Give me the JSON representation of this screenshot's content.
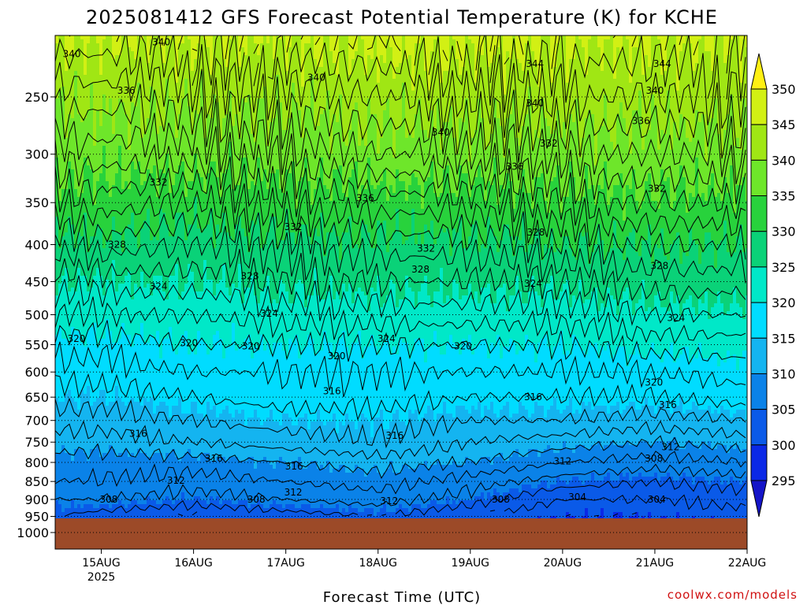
{
  "colors": {
    "bands": [
      "#1414c8",
      "#0a28e6",
      "#0a5ae8",
      "#0a82e8",
      "#14b4f0",
      "#00dcff",
      "#00e8c8",
      "#0ad278",
      "#28d23c",
      "#6ee62a",
      "#a0e614",
      "#d2f014",
      "#fff014"
    ],
    "ground": "#9c4a28",
    "credit": "#d01010"
  },
  "chart_data": {
    "type": "contour",
    "title": "2025081412 GFS Forecast Potential Temperature (K) for KCHE",
    "xlabel": "Forecast Time (UTC)",
    "ylabel": "",
    "credit": "coolwx.com/models",
    "y_scale": "log",
    "ylim": [
      1050,
      200
    ],
    "y_ticks": [
      250,
      300,
      350,
      400,
      450,
      500,
      550,
      600,
      650,
      700,
      750,
      800,
      850,
      900,
      950,
      1000
    ],
    "y_tick_labels": [
      "250",
      "300",
      "350",
      "400",
      "450",
      "500",
      "550",
      "600",
      "650",
      "700",
      "750",
      "800",
      "850",
      "900",
      "950",
      "1000"
    ],
    "x_range": [
      "2025-08-14T12:00Z",
      "2025-08-22T00:00Z"
    ],
    "x_ticks": [
      {
        "time": "2025-08-15T00:00Z",
        "label": "15AUG",
        "sublabel": "2025"
      },
      {
        "time": "2025-08-16T00:00Z",
        "label": "16AUG"
      },
      {
        "time": "2025-08-17T00:00Z",
        "label": "17AUG"
      },
      {
        "time": "2025-08-18T00:00Z",
        "label": "18AUG"
      },
      {
        "time": "2025-08-19T00:00Z",
        "label": "19AUG"
      },
      {
        "time": "2025-08-20T00:00Z",
        "label": "20AUG"
      },
      {
        "time": "2025-08-21T00:00Z",
        "label": "21AUG"
      },
      {
        "time": "2025-08-22T00:00Z",
        "label": "22AUG"
      }
    ],
    "grid": "dotted horizontal at pressure ticks",
    "ground_below_hPa": 953,
    "colorbar": {
      "levels": [
        295,
        300,
        305,
        310,
        315,
        320,
        325,
        330,
        335,
        340,
        345,
        350
      ],
      "labels": [
        "295",
        "300",
        "305",
        "310",
        "315",
        "320",
        "325",
        "330",
        "335",
        "340",
        "345",
        "350"
      ],
      "extend": "both"
    },
    "contour_interval_K": 2,
    "potential_temperature_profile": {
      "description_days": [
        14.5,
        15,
        16,
        17,
        18,
        19,
        20,
        21,
        22
      ],
      "levels_hPa": [
        950,
        900,
        850,
        800,
        750,
        700,
        650,
        600,
        550,
        500,
        450,
        400,
        350,
        300,
        250,
        200
      ],
      "theta_K": [
        [
          304,
          306,
          308,
          309,
          311,
          313,
          315,
          317,
          319,
          322,
          325,
          329,
          333,
          337,
          341,
          346
        ],
        [
          303,
          306,
          308,
          309,
          311,
          313,
          315,
          317,
          319,
          322,
          325,
          329,
          333,
          337,
          341,
          346
        ],
        [
          302,
          305,
          307,
          309,
          312,
          314,
          316,
          318,
          320,
          322,
          325,
          328,
          332,
          337,
          341,
          346
        ],
        [
          303,
          306,
          308,
          310,
          313,
          315,
          317,
          318,
          320,
          323,
          326,
          329,
          333,
          337,
          341,
          346
        ],
        [
          304,
          307,
          309,
          311,
          314,
          315,
          317,
          318,
          320,
          323,
          326,
          329,
          333,
          338,
          342,
          347
        ],
        [
          302,
          305,
          307,
          310,
          312,
          314,
          316,
          318,
          320,
          323,
          326,
          329,
          333,
          338,
          342,
          347
        ],
        [
          300,
          302,
          305,
          308,
          311,
          314,
          316,
          318,
          320,
          323,
          326,
          330,
          334,
          338,
          342,
          346
        ],
        [
          300,
          302,
          304,
          307,
          310,
          313,
          316,
          318,
          321,
          324,
          327,
          330,
          334,
          338,
          342,
          346
        ],
        [
          301,
          303,
          305,
          308,
          311,
          314,
          317,
          319,
          321,
          324,
          327,
          330,
          334,
          338,
          342,
          346
        ]
      ]
    },
    "contour_labels": [
      {
        "t": 14.68,
        "p": 218,
        "v": "340"
      },
      {
        "t": 15.65,
        "p": 210,
        "v": "340"
      },
      {
        "t": 17.33,
        "p": 235,
        "v": "340"
      },
      {
        "t": 15.27,
        "p": 245,
        "v": "336"
      },
      {
        "t": 18.68,
        "p": 280,
        "v": "340"
      },
      {
        "t": 19.7,
        "p": 225,
        "v": "344"
      },
      {
        "t": 21.08,
        "p": 225,
        "v": "344"
      },
      {
        "t": 19.7,
        "p": 255,
        "v": "340"
      },
      {
        "t": 21.0,
        "p": 245,
        "v": "340"
      },
      {
        "t": 20.85,
        "p": 270,
        "v": "336"
      },
      {
        "t": 19.48,
        "p": 312,
        "v": "336"
      },
      {
        "t": 19.85,
        "p": 290,
        "v": "332"
      },
      {
        "t": 15.62,
        "p": 328,
        "v": "332"
      },
      {
        "t": 17.86,
        "p": 345,
        "v": "336"
      },
      {
        "t": 21.02,
        "p": 335,
        "v": "332"
      },
      {
        "t": 17.08,
        "p": 378,
        "v": "332"
      },
      {
        "t": 18.52,
        "p": 405,
        "v": "332"
      },
      {
        "t": 15.17,
        "p": 400,
        "v": "328"
      },
      {
        "t": 19.71,
        "p": 385,
        "v": "328"
      },
      {
        "t": 18.46,
        "p": 433,
        "v": "328"
      },
      {
        "t": 16.61,
        "p": 442,
        "v": "328"
      },
      {
        "t": 21.05,
        "p": 428,
        "v": "328"
      },
      {
        "t": 15.62,
        "p": 457,
        "v": "324"
      },
      {
        "t": 19.68,
        "p": 453,
        "v": "324"
      },
      {
        "t": 16.82,
        "p": 498,
        "v": "324"
      },
      {
        "t": 18.09,
        "p": 540,
        "v": "324"
      },
      {
        "t": 21.23,
        "p": 505,
        "v": "324"
      },
      {
        "t": 14.73,
        "p": 540,
        "v": "320"
      },
      {
        "t": 15.95,
        "p": 547,
        "v": "320"
      },
      {
        "t": 16.62,
        "p": 553,
        "v": "320"
      },
      {
        "t": 17.55,
        "p": 570,
        "v": "320"
      },
      {
        "t": 18.92,
        "p": 553,
        "v": "320"
      },
      {
        "t": 20.99,
        "p": 620,
        "v": "320"
      },
      {
        "t": 17.5,
        "p": 638,
        "v": "316"
      },
      {
        "t": 19.68,
        "p": 650,
        "v": "316"
      },
      {
        "t": 21.14,
        "p": 666,
        "v": "316"
      },
      {
        "t": 15.4,
        "p": 730,
        "v": "316"
      },
      {
        "t": 16.22,
        "p": 790,
        "v": "316"
      },
      {
        "t": 18.18,
        "p": 735,
        "v": "316"
      },
      {
        "t": 17.09,
        "p": 810,
        "v": "316"
      },
      {
        "t": 20.0,
        "p": 797,
        "v": "312"
      },
      {
        "t": 21.17,
        "p": 762,
        "v": "312"
      },
      {
        "t": 15.81,
        "p": 848,
        "v": "312"
      },
      {
        "t": 17.08,
        "p": 880,
        "v": "312"
      },
      {
        "t": 18.12,
        "p": 905,
        "v": "312"
      },
      {
        "t": 20.99,
        "p": 790,
        "v": "308"
      },
      {
        "t": 15.08,
        "p": 900,
        "v": "308"
      },
      {
        "t": 16.68,
        "p": 900,
        "v": "308"
      },
      {
        "t": 19.33,
        "p": 900,
        "v": "308"
      },
      {
        "t": 20.16,
        "p": 893,
        "v": "304"
      },
      {
        "t": 21.02,
        "p": 900,
        "v": "304"
      }
    ]
  }
}
